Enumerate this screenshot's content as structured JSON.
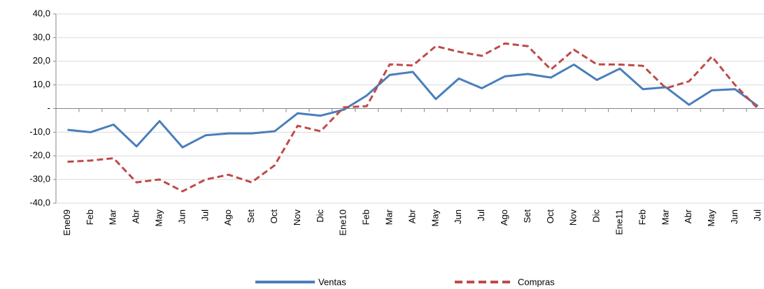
{
  "chart_data": {
    "type": "line",
    "categories": [
      "Ene09",
      "Feb",
      "Mar",
      "Abr",
      "May",
      "Jun",
      "Jul",
      "Ago",
      "Set",
      "Oct",
      "Nov",
      "Dic",
      "Ene10",
      "Feb",
      "Mar",
      "Abr",
      "May",
      "Jun",
      "Jul",
      "Ago",
      "Set",
      "Oct",
      "Nov",
      "Dic",
      "Ene11",
      "Feb",
      "Mar",
      "Abr",
      "May",
      "Jun",
      "Jul"
    ],
    "series": [
      {
        "name": "Ventas",
        "color": "#4a7ebb",
        "dashed": false,
        "values": [
          -9,
          -10,
          -6.8,
          -16,
          -5.3,
          -16.4,
          -11.3,
          -10.5,
          -10.5,
          -9.6,
          -2,
          -3,
          -0.5,
          5.5,
          14.2,
          15.5,
          4,
          12.7,
          8.6,
          13.6,
          14.6,
          13.1,
          18.6,
          12.1,
          16.9,
          8.2,
          9,
          1.6,
          7.7,
          8.2,
          1
        ]
      },
      {
        "name": "Compras",
        "color": "#be4b48",
        "dashed": true,
        "values": [
          -22.5,
          -22,
          -21,
          -31.2,
          -30,
          -35,
          -30,
          -28,
          -31.2,
          -24,
          -7.3,
          -9.6,
          0.5,
          1,
          18.7,
          18.2,
          26.4,
          24,
          22.3,
          27.5,
          26.4,
          16.5,
          24.9,
          18.7,
          18.6,
          18.1,
          8.6,
          11.5,
          22,
          10,
          0
        ]
      }
    ],
    "ylim": [
      -40,
      40
    ],
    "yticks": [
      {
        "value": 40,
        "label": "40,0"
      },
      {
        "value": 30,
        "label": "30,0"
      },
      {
        "value": 20,
        "label": "20,0"
      },
      {
        "value": 10,
        "label": "10,0"
      },
      {
        "value": 0,
        "label": "-"
      },
      {
        "value": -10,
        "label": "-10,0"
      },
      {
        "value": -20,
        "label": "-20,0"
      },
      {
        "value": -30,
        "label": "-30,0"
      },
      {
        "value": -40,
        "label": "-40,0"
      }
    ],
    "grid": true
  }
}
